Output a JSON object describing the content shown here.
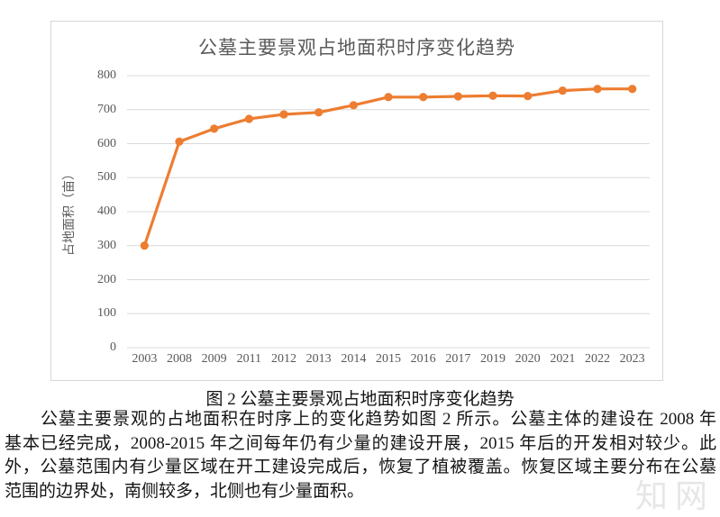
{
  "chart_data": {
    "type": "line",
    "title": "公墓主要景观占地面积时序变化趋势",
    "xlabel": "",
    "ylabel": "占地面积（亩）",
    "categories": [
      "2003",
      "2008",
      "2009",
      "2011",
      "2012",
      "2013",
      "2014",
      "2015",
      "2016",
      "2017",
      "2019",
      "2020",
      "2021",
      "2022",
      "2023"
    ],
    "values": [
      300,
      606,
      644,
      673,
      686,
      692,
      713,
      737,
      737,
      739,
      741,
      740,
      756,
      761,
      761
    ],
    "ylim": [
      0,
      800
    ],
    "ytick_step": 100,
    "grid": true,
    "legend": false,
    "line_color": "#ED7D31",
    "marker": "circle"
  },
  "chart_style": {
    "grid_color": "#D9D9D9",
    "axis_text_color": "#595959",
    "border_color": "#D6D6D6"
  },
  "caption": "图 2  公墓主要景观占地面积时序变化趋势",
  "paragraph": {
    "lines": [
      "公墓主要景观的占地面积在时序上的变化趋势如图 2 所示。公墓主体的建设在 2008 年",
      "基本已经完成，2008-2015 年之间每年仍有少量的建设开展，2015 年后的开发相对较少。此",
      "外，公墓范围内有少量区域在开工建设完成后，恢复了植被覆盖。恢复区域主要分布在公墓",
      "范围的边界处，南侧较多，北侧也有少量面积。"
    ]
  },
  "watermark": "知网"
}
